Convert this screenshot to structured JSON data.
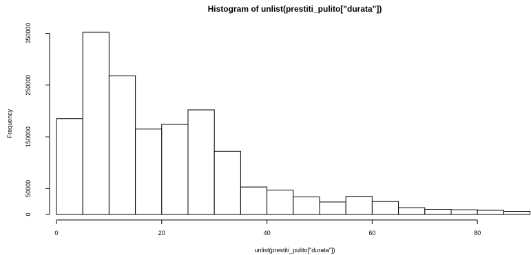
{
  "chart_data": {
    "type": "bar",
    "title": "Histogram of unlist(prestiti_pulito[\"durata\"])",
    "xlabel": "unlist(prestiti_pulito[\"durata\"])",
    "ylabel": "Frequency",
    "bin_width": 5,
    "bins": [
      {
        "start": 0,
        "end": 5,
        "count": 185000
      },
      {
        "start": 5,
        "end": 10,
        "count": 352000
      },
      {
        "start": 10,
        "end": 15,
        "count": 268000
      },
      {
        "start": 15,
        "end": 20,
        "count": 165000
      },
      {
        "start": 20,
        "end": 25,
        "count": 174000
      },
      {
        "start": 25,
        "end": 30,
        "count": 202000
      },
      {
        "start": 30,
        "end": 35,
        "count": 122000
      },
      {
        "start": 35,
        "end": 40,
        "count": 53000
      },
      {
        "start": 40,
        "end": 45,
        "count": 47000
      },
      {
        "start": 45,
        "end": 50,
        "count": 34000
      },
      {
        "start": 50,
        "end": 55,
        "count": 24000
      },
      {
        "start": 55,
        "end": 60,
        "count": 35000
      },
      {
        "start": 60,
        "end": 65,
        "count": 25000
      },
      {
        "start": 65,
        "end": 70,
        "count": 13000
      },
      {
        "start": 70,
        "end": 75,
        "count": 10000
      },
      {
        "start": 75,
        "end": 80,
        "count": 9000
      },
      {
        "start": 80,
        "end": 85,
        "count": 8000
      },
      {
        "start": 85,
        "end": 90,
        "count": 6000
      }
    ],
    "xlim": [
      0,
      90
    ],
    "ylim": [
      0,
      352000
    ],
    "x_ticks": [
      0,
      20,
      40,
      60,
      80
    ],
    "y_ticks": [
      0,
      50000,
      150000,
      250000,
      350000
    ],
    "y_tick_labels": [
      "0",
      "50000",
      "150000",
      "250000",
      "350000"
    ],
    "x_tick_labels": [
      "0",
      "20",
      "40",
      "60",
      "80"
    ],
    "grid": false,
    "bar_fill": "#ffffff",
    "bar_stroke": "#000000"
  }
}
